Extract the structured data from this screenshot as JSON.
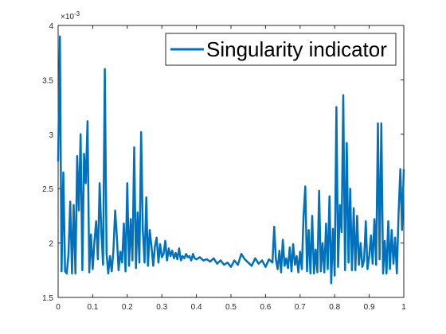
{
  "chart_data": {
    "type": "line",
    "title": "",
    "xlabel": "",
    "ylabel": "",
    "y_exponent_label": "×10",
    "y_exponent_power": "-3",
    "xlim": [
      0,
      1
    ],
    "ylim": [
      1.5,
      4
    ],
    "grid": false,
    "legend_placement": "top-right",
    "x_ticks": [
      0,
      0.1,
      0.2,
      0.3,
      0.4,
      0.5,
      0.6,
      0.7,
      0.8,
      0.9,
      1
    ],
    "x_tick_labels": [
      "0",
      "0.1",
      "0.2",
      "0.3",
      "0.4",
      "0.5",
      "0.6",
      "0.7",
      "0.8",
      "0.9",
      "1"
    ],
    "y_ticks": [
      1.5,
      2,
      2.5,
      3,
      3.5,
      4
    ],
    "y_tick_labels": [
      "1.5",
      "2",
      "2.5",
      "3",
      "3.5",
      "4"
    ],
    "colors": {
      "series": "#0072BD",
      "axes": "#262626",
      "background": "#ffffff"
    },
    "series": [
      {
        "name": "Singularity indicator",
        "x": [
          0,
          0.005,
          0.01,
          0.015,
          0.02,
          0.025,
          0.03,
          0.035,
          0.04,
          0.045,
          0.05,
          0.055,
          0.06,
          0.065,
          0.07,
          0.075,
          0.08,
          0.085,
          0.09,
          0.095,
          0.1,
          0.105,
          0.11,
          0.115,
          0.12,
          0.125,
          0.13,
          0.135,
          0.14,
          0.145,
          0.15,
          0.155,
          0.16,
          0.165,
          0.17,
          0.175,
          0.18,
          0.185,
          0.19,
          0.195,
          0.2,
          0.205,
          0.21,
          0.215,
          0.22,
          0.225,
          0.23,
          0.235,
          0.24,
          0.245,
          0.25,
          0.255,
          0.26,
          0.265,
          0.27,
          0.275,
          0.28,
          0.285,
          0.29,
          0.295,
          0.3,
          0.305,
          0.31,
          0.315,
          0.32,
          0.325,
          0.33,
          0.335,
          0.34,
          0.345,
          0.35,
          0.355,
          0.36,
          0.365,
          0.37,
          0.375,
          0.38,
          0.385,
          0.39,
          0.395,
          0.4,
          0.41,
          0.42,
          0.43,
          0.44,
          0.45,
          0.46,
          0.47,
          0.48,
          0.49,
          0.5,
          0.51,
          0.52,
          0.53,
          0.54,
          0.55,
          0.56,
          0.57,
          0.58,
          0.59,
          0.6,
          0.61,
          0.62,
          0.625,
          0.63,
          0.635,
          0.64,
          0.645,
          0.65,
          0.655,
          0.66,
          0.665,
          0.67,
          0.675,
          0.68,
          0.685,
          0.69,
          0.695,
          0.7,
          0.705,
          0.71,
          0.715,
          0.72,
          0.725,
          0.73,
          0.735,
          0.74,
          0.745,
          0.75,
          0.755,
          0.76,
          0.765,
          0.77,
          0.775,
          0.78,
          0.785,
          0.79,
          0.795,
          0.8,
          0.805,
          0.81,
          0.815,
          0.82,
          0.825,
          0.83,
          0.835,
          0.84,
          0.845,
          0.85,
          0.855,
          0.86,
          0.865,
          0.87,
          0.875,
          0.88,
          0.885,
          0.89,
          0.895,
          0.9,
          0.905,
          0.91,
          0.915,
          0.92,
          0.925,
          0.93,
          0.935,
          0.94,
          0.945,
          0.95,
          0.955,
          0.96,
          0.965,
          0.97,
          0.975,
          0.98,
          0.985,
          0.99,
          0.995,
          1
        ],
        "y": [
          2.75,
          3.9,
          1.74,
          2.65,
          1.74,
          1.72,
          1.9,
          2.38,
          1.72,
          2.35,
          1.72,
          2.8,
          2.3,
          3.0,
          1.75,
          2.82,
          2.55,
          3.12,
          1.73,
          2.08,
          1.76,
          2.02,
          2.2,
          1.85,
          2.55,
          2.1,
          1.8,
          3.6,
          1.9,
          1.72,
          1.88,
          1.74,
          1.93,
          2.3,
          2.05,
          1.75,
          1.92,
          1.82,
          2.18,
          1.74,
          2.55,
          1.79,
          2.22,
          1.84,
          2.88,
          1.77,
          2.28,
          1.82,
          3.02,
          2.12,
          1.82,
          2.42,
          1.79,
          2.12,
          1.97,
          1.79,
          1.97,
          2.05,
          1.82,
          1.99,
          1.87,
          1.9,
          2.02,
          1.84,
          1.95,
          1.88,
          1.93,
          1.86,
          1.91,
          1.85,
          1.95,
          1.84,
          1.88,
          1.86,
          1.9,
          1.87,
          1.88,
          1.84,
          1.9,
          1.86,
          1.85,
          1.87,
          1.84,
          1.85,
          1.83,
          1.86,
          1.81,
          1.84,
          1.8,
          1.82,
          1.78,
          1.84,
          1.8,
          1.9,
          1.85,
          1.82,
          1.79,
          1.86,
          1.81,
          1.84,
          1.78,
          1.85,
          1.82,
          2.15,
          1.85,
          1.76,
          1.93,
          1.73,
          2.03,
          1.79,
          1.86,
          1.77,
          1.96,
          1.74,
          1.99,
          1.8,
          1.88,
          1.73,
          1.92,
          1.76,
          2.24,
          2.52,
          1.74,
          2.12,
          1.72,
          2.25,
          1.72,
          1.94,
          1.73,
          2.48,
          1.74,
          2.0,
          1.73,
          2.18,
          1.76,
          2.43,
          1.63,
          2.13,
          1.7,
          3.25,
          1.78,
          2.35,
          2.1,
          3.36,
          1.75,
          2.92,
          1.82,
          2.5,
          1.75,
          2.32,
          1.75,
          2.25,
          1.8,
          2.0,
          1.78,
          1.84,
          2.2,
          1.76,
          1.88,
          2.07,
          1.81,
          2.22,
          1.8,
          3.1,
          1.85,
          3.1,
          1.72,
          2.02,
          1.72,
          2.2,
          1.76,
          2.12,
          1.81,
          2.05,
          1.72,
          2.28,
          2.68,
          2.12,
          2.68
        ]
      }
    ]
  }
}
